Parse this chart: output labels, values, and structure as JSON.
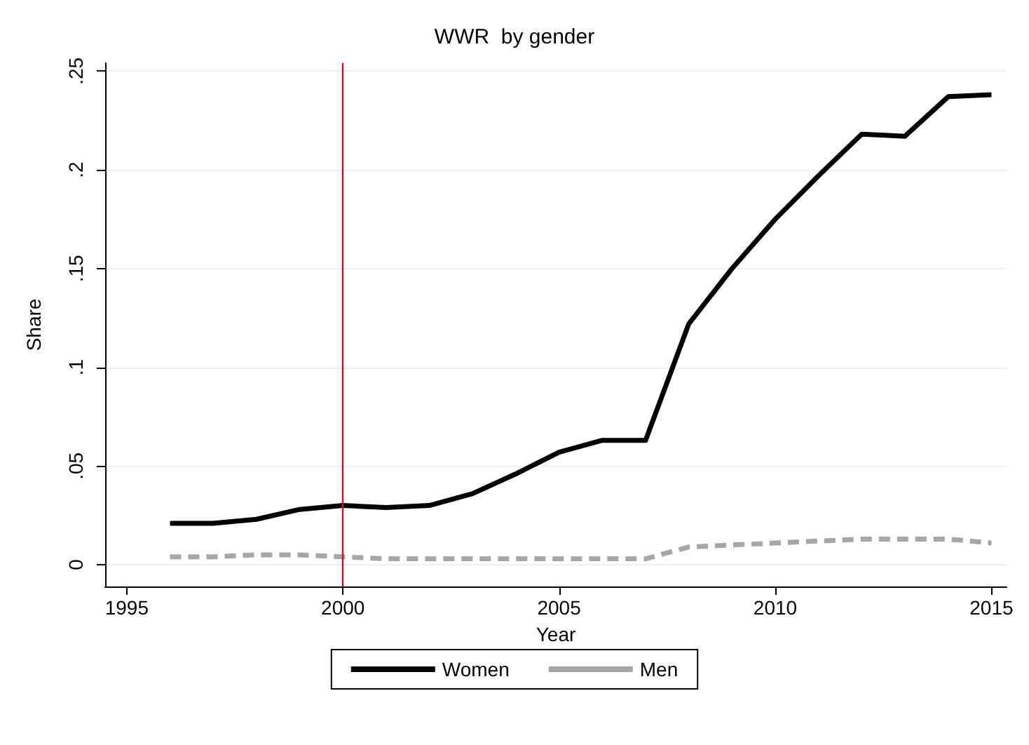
{
  "chart_data": {
    "type": "line",
    "title": "WWR  by gender",
    "xlabel": "Year",
    "ylabel": "Share",
    "x": [
      1996,
      1997,
      1998,
      1999,
      2000,
      2001,
      2002,
      2003,
      2004,
      2005,
      2006,
      2007,
      2008,
      2009,
      2010,
      2011,
      2012,
      2013,
      2014,
      2015
    ],
    "series": [
      {
        "name": "Women",
        "color": "#000000",
        "line_style": "solid",
        "values": [
          0.021,
          0.021,
          0.023,
          0.028,
          0.03,
          0.029,
          0.03,
          0.036,
          0.046,
          0.057,
          0.063,
          0.063,
          0.122,
          0.15,
          0.175,
          0.197,
          0.218,
          0.217,
          0.237,
          0.238
        ]
      },
      {
        "name": "Men",
        "color": "#a6a6a6",
        "line_style": "dashed",
        "values": [
          0.004,
          0.004,
          0.005,
          0.005,
          0.004,
          0.003,
          0.003,
          0.003,
          0.003,
          0.003,
          0.003,
          0.003,
          0.009,
          0.01,
          0.011,
          0.012,
          0.013,
          0.013,
          0.013,
          0.011
        ]
      }
    ],
    "xlim": [
      1994.5,
      2015.35
    ],
    "xticks": [
      1995,
      2000,
      2005,
      2010,
      2015
    ],
    "ylim": [
      -0.011,
      0.254
    ],
    "yticks": [
      0,
      {
        "value": 0.05,
        "label": ".05"
      },
      {
        "value": 0.1,
        "label": ".1"
      },
      {
        "value": 0.15,
        "label": ".15"
      },
      {
        "value": 0.2,
        "label": ".2"
      },
      {
        "value": 0.25,
        "label": ".25"
      }
    ],
    "ref_lines": [
      {
        "axis": "x",
        "value": 2000,
        "color": "#c8102e"
      }
    ],
    "grid": "y",
    "legend": "bottom",
    "marker": "none"
  }
}
